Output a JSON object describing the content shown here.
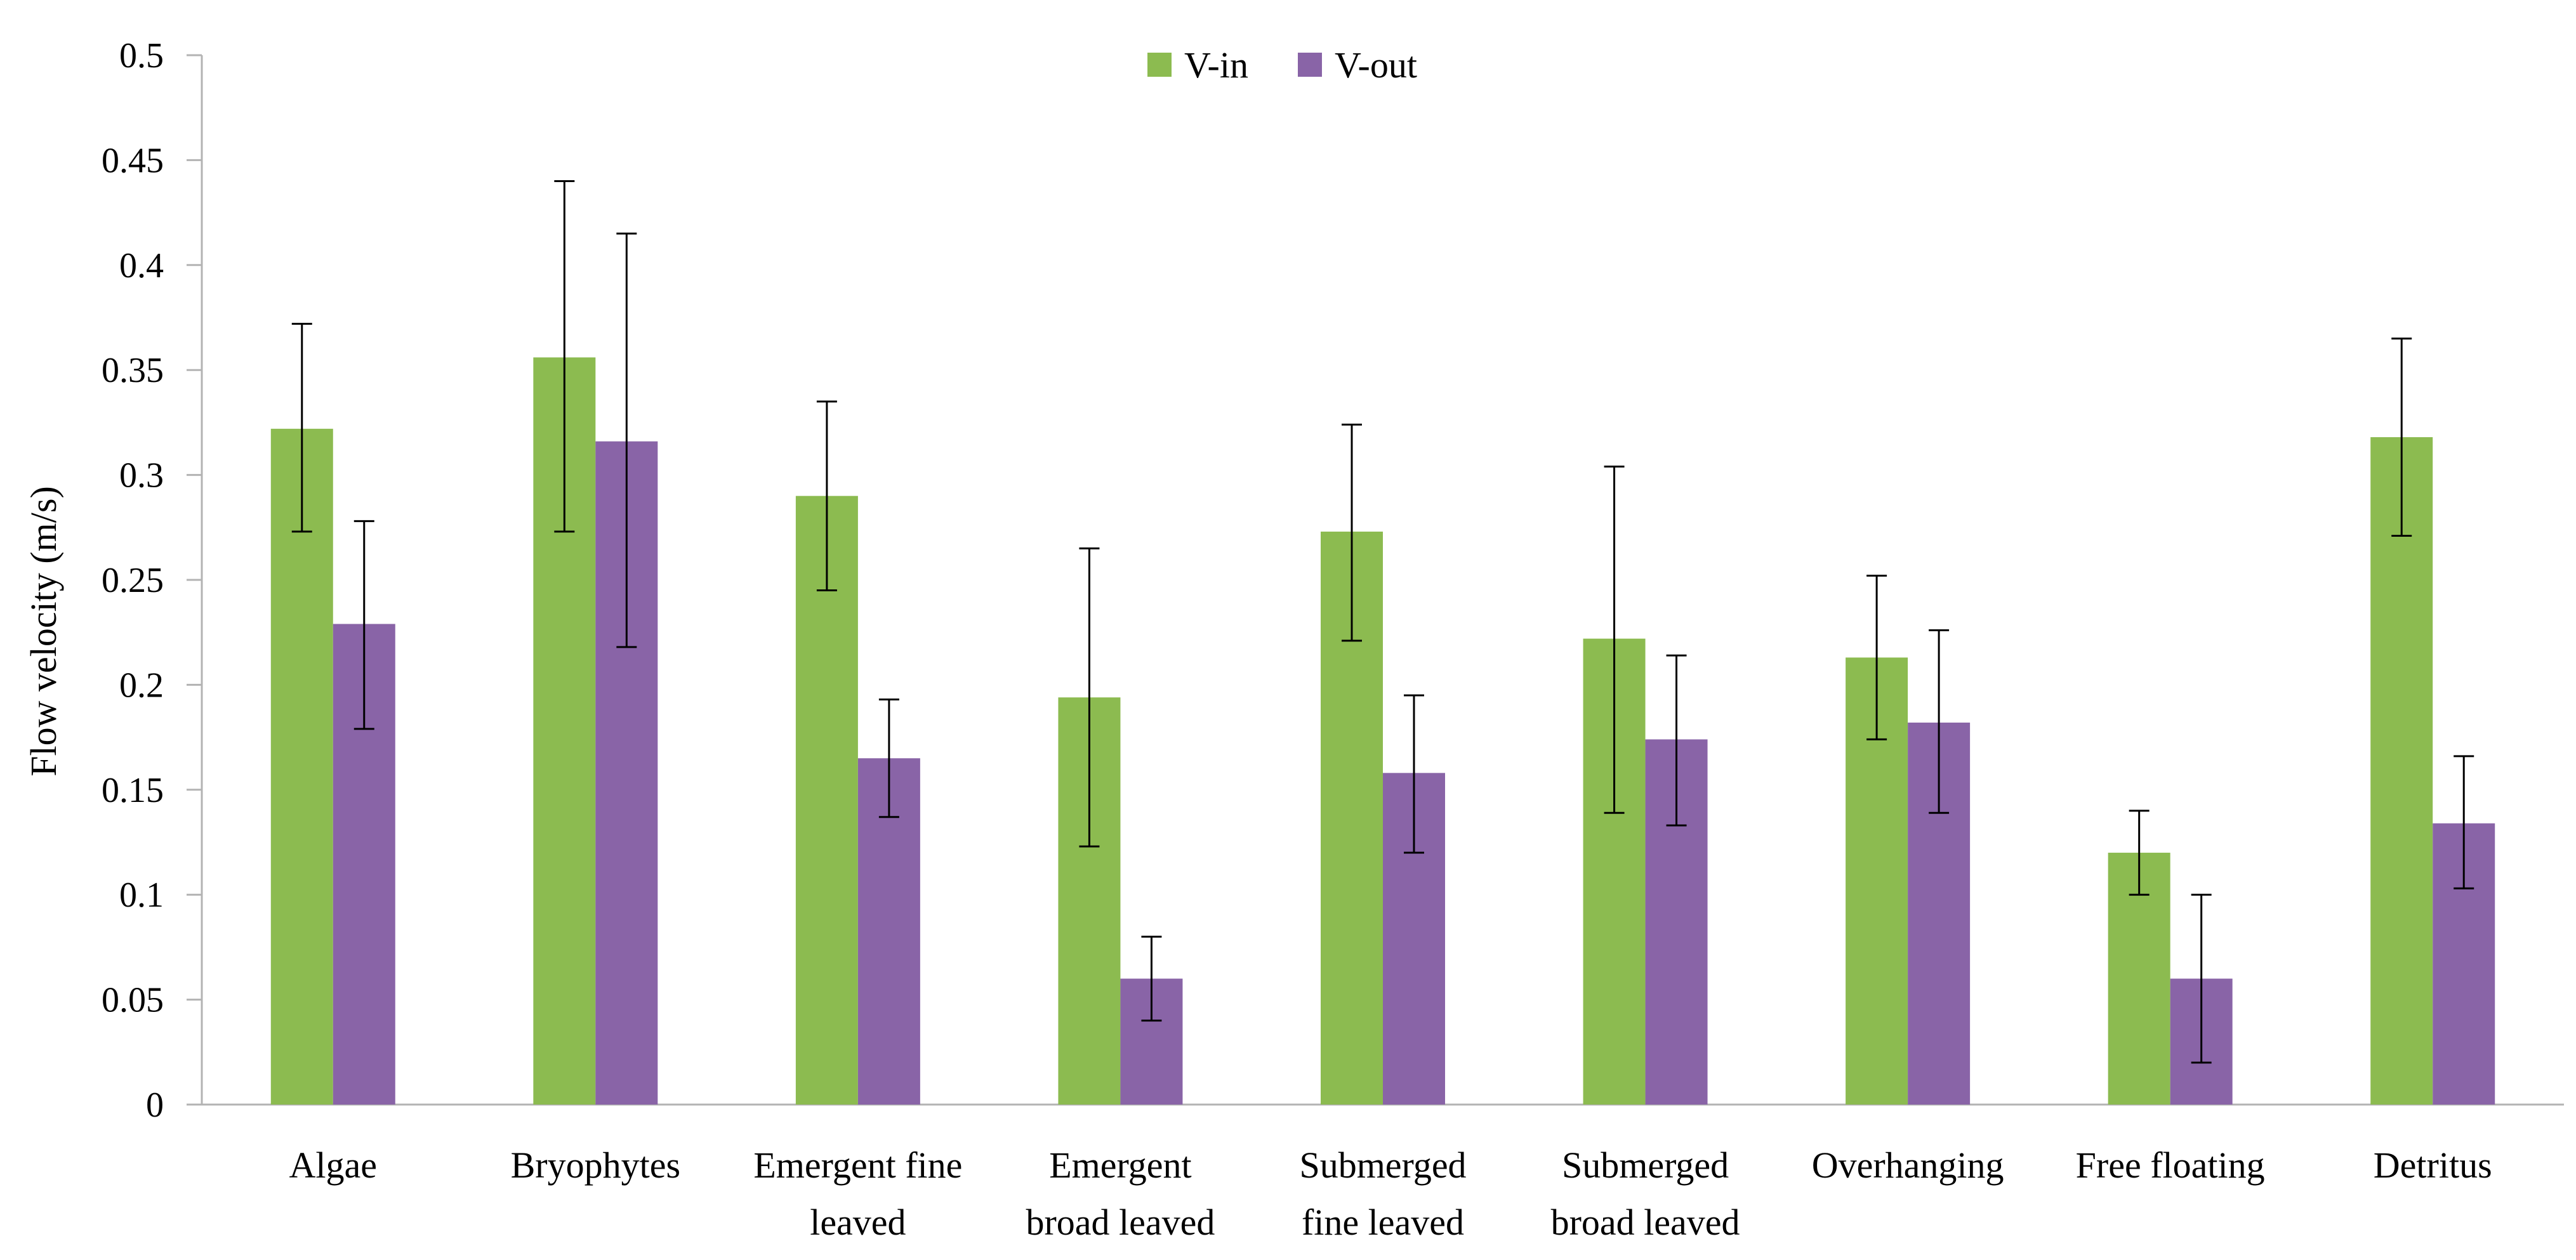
{
  "chart_data": {
    "type": "bar",
    "title": "",
    "xlabel": "",
    "ylabel": "Flow velocity (m/s)",
    "ylim": [
      0,
      0.5
    ],
    "yticks": [
      0,
      0.05,
      0.1,
      0.15,
      0.2,
      0.25,
      0.3,
      0.35,
      0.4,
      0.45,
      0.5
    ],
    "ytick_labels": [
      "0",
      "0.05",
      "0.1",
      "0.15",
      "0.2",
      "0.25",
      "0.3",
      "0.35",
      "0.4",
      "0.45",
      "0.5"
    ],
    "grid": false,
    "legend_position": "top-center",
    "categories": [
      "Algae",
      "Bryophytes",
      "Emergent fine leaved",
      "Emergent broad leaved",
      "Submerged fine leaved",
      "Submerged broad leaved",
      "Overhanging",
      "Free floating",
      "Detritus"
    ],
    "category_lines": [
      [
        "Algae"
      ],
      [
        "Bryophytes"
      ],
      [
        "Emergent fine",
        "leaved"
      ],
      [
        "Emergent",
        "broad leaved"
      ],
      [
        "Submerged",
        "fine leaved"
      ],
      [
        "Submerged",
        "broad leaved"
      ],
      [
        "Overhanging"
      ],
      [
        "Free floating"
      ],
      [
        "Detritus"
      ]
    ],
    "series": [
      {
        "name": "V-in",
        "color": "#8cbb50",
        "values": [
          0.322,
          0.356,
          0.29,
          0.194,
          0.273,
          0.222,
          0.213,
          0.12,
          0.318
        ],
        "err_low": [
          0.273,
          0.273,
          0.245,
          0.123,
          0.221,
          0.139,
          0.174,
          0.1,
          0.271
        ],
        "err_high": [
          0.372,
          0.44,
          0.335,
          0.265,
          0.324,
          0.304,
          0.252,
          0.14,
          0.365
        ]
      },
      {
        "name": "V-out",
        "color": "#8964a7",
        "values": [
          0.229,
          0.316,
          0.165,
          0.06,
          0.158,
          0.174,
          0.182,
          0.06,
          0.134
        ],
        "err_low": [
          0.179,
          0.218,
          0.137,
          0.04,
          0.12,
          0.133,
          0.139,
          0.02,
          0.103
        ],
        "err_high": [
          0.278,
          0.415,
          0.193,
          0.08,
          0.195,
          0.214,
          0.226,
          0.1,
          0.166
        ]
      }
    ]
  }
}
